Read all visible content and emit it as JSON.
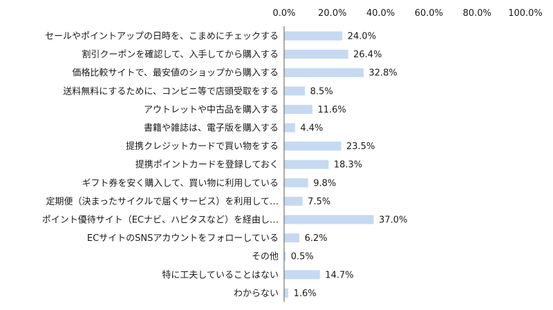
{
  "chart_data": {
    "type": "bar",
    "orientation": "horizontal",
    "title": "",
    "xlabel": "",
    "ylabel": "",
    "xlim": [
      0,
      100
    ],
    "grid": false,
    "legend": "none",
    "x_axis_position": "top",
    "tick_labels": [
      "0.0%",
      "20.0%",
      "40.0%",
      "60.0%",
      "80.0%",
      "100.0%"
    ],
    "ticks": [
      0,
      20,
      40,
      60,
      80,
      100
    ],
    "bar_color": "#c6d9f1",
    "categories": [
      "セールやポイントアップの日時を、こまめにチェックする",
      "割引クーポンを確認して、入手してから購入する",
      "価格比較サイトで、最安値のショップから購入する",
      "送料無料にするために、コンビニ等で店頭受取をする",
      "アウトレットや中古品を購入する",
      "書籍や雑誌は、電子版を購入する",
      "提携クレジットカードで買い物をする",
      "提携ポイントカードを登録しておく",
      "ギフト券を安く購入して、買い物に利用している",
      "定期便（決まったサイクルで届くサービス）を利用して…",
      "ポイント優待サイト（ECナビ、ハピタスなど）を経由し…",
      "ECサイトのSNSアカウントをフォローしている",
      "その他",
      "特に工夫していることはない",
      "わからない"
    ],
    "values": [
      24.0,
      26.4,
      32.8,
      8.5,
      11.6,
      4.4,
      23.5,
      18.3,
      9.8,
      7.5,
      37.0,
      6.2,
      0.5,
      14.7,
      1.6
    ],
    "value_labels": [
      "24.0%",
      "26.4%",
      "32.8%",
      "8.5%",
      "11.6%",
      "4.4%",
      "23.5%",
      "18.3%",
      "9.8%",
      "7.5%",
      "37.0%",
      "6.2%",
      "0.5%",
      "14.7%",
      "1.6%"
    ]
  }
}
